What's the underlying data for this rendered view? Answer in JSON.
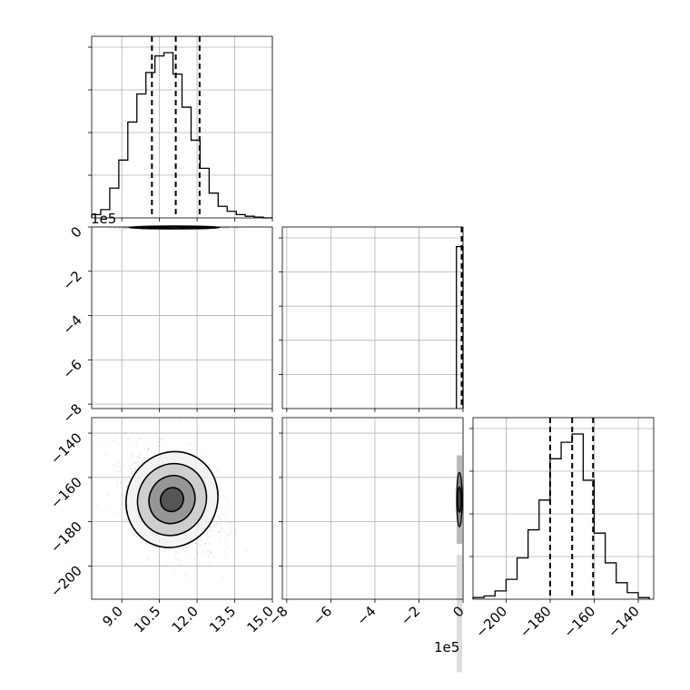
{
  "chart_data": {
    "type": "corner",
    "grid": true,
    "offset_labels": {
      "param2_y": "1e5",
      "param2_x": "1e5"
    },
    "parameters": [
      {
        "range": [
          7.8,
          15.0
        ],
        "tick_values": [
          9.0,
          10.5,
          12.0,
          13.5,
          15.0
        ],
        "tick_labels": [
          "9.0",
          "10.5",
          "12.0",
          "13.5",
          "15.0"
        ],
        "quantiles": [
          10.2,
          11.15,
          12.1
        ],
        "hist": {
          "edges": [
            7.8,
            8.16,
            8.52,
            8.88,
            9.24,
            9.6,
            9.96,
            10.32,
            10.68,
            11.04,
            11.4,
            11.76,
            12.12,
            12.48,
            12.84,
            13.2,
            13.56,
            13.92,
            14.28,
            14.64,
            15.0
          ],
          "counts": [
            0.02,
            0.05,
            0.18,
            0.35,
            0.58,
            0.75,
            0.88,
            0.98,
            1.0,
            0.87,
            0.67,
            0.47,
            0.3,
            0.15,
            0.07,
            0.04,
            0.02,
            0.01,
            0.005,
            0.0
          ]
        }
      },
      {
        "range": [
          -8.2,
          0.0
        ],
        "tick_values": [
          -8,
          -6,
          -4,
          -2,
          0
        ],
        "tick_labels": [
          "−8",
          "−6",
          "−4",
          "−2",
          "0"
        ],
        "quantiles": [
          -0.02,
          -0.005,
          0.0
        ],
        "hist": {
          "edges": [
            -0.3,
            0.0
          ],
          "counts": [
            0.98
          ]
        }
      },
      {
        "range": [
          -215,
          -133
        ],
        "tick_values": [
          -200,
          -180,
          -160,
          -140
        ],
        "tick_labels": [
          "−200",
          "−180",
          "−160",
          "−140"
        ],
        "quantiles": [
          -180,
          -170,
          -160.5
        ],
        "hist": {
          "edges": [
            -215,
            -210,
            -205,
            -200,
            -195,
            -190,
            -185,
            -180,
            -175,
            -170,
            -165,
            -160,
            -155,
            -150,
            -145,
            -140,
            -135
          ],
          "counts": [
            0.01,
            0.02,
            0.05,
            0.12,
            0.25,
            0.42,
            0.6,
            0.85,
            0.95,
            1.0,
            0.72,
            0.4,
            0.22,
            0.1,
            0.04,
            0.01
          ]
        }
      }
    ],
    "panel_ticks_y": {
      "hist0": [
        0.25,
        0.5,
        0.75,
        1.0
      ],
      "hist1": [
        0.2,
        0.4,
        0.6,
        0.8,
        1.0
      ],
      "hist2": [
        0.25,
        0.5,
        0.75,
        1.0
      ]
    },
    "scatter_params": {
      "p0_p1": {
        "center": [
          11.1,
          -0.02
        ],
        "sx": 0.9,
        "sy": 0.03
      },
      "p0_p2": {
        "center": [
          11.0,
          -170
        ],
        "sx": 0.9,
        "sy": 11,
        "rho": -0.35
      },
      "p1_p2": {
        "center": [
          -0.02,
          -170
        ],
        "sx": 0.03,
        "sy": 11
      }
    },
    "contour_levels_sigma": [
      0.5,
      1.0,
      1.5,
      2.0
    ]
  }
}
